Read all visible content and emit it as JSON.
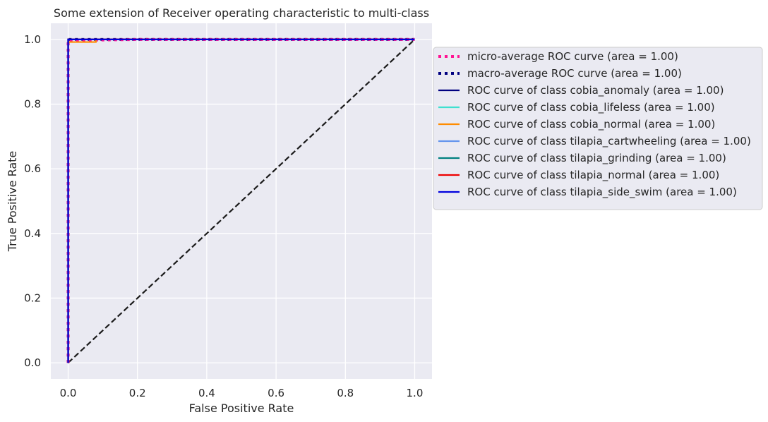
{
  "chart_data": {
    "type": "line",
    "title": "Some extension of Receiver operating characteristic to multi-class",
    "xlabel": "False Positive Rate",
    "ylabel": "True Positive Rate",
    "xlim": [
      -0.05,
      1.05
    ],
    "ylim": [
      -0.05,
      1.05
    ],
    "xticks": [
      0.0,
      0.2,
      0.4,
      0.6,
      0.8,
      1.0
    ],
    "yticks": [
      0.0,
      0.2,
      0.4,
      0.6,
      0.8,
      1.0
    ],
    "xtick_labels": [
      "0.0",
      "0.2",
      "0.4",
      "0.6",
      "0.8",
      "1.0"
    ],
    "ytick_labels": [
      "0.0",
      "0.2",
      "0.4",
      "0.6",
      "0.8",
      "1.0"
    ],
    "grid": true,
    "legend_placement": "outside right, upper",
    "background": "#eaeaf2",
    "series": [
      {
        "name": "micro-average ROC curve (area = 1.00)",
        "color": "#ff1493",
        "style": "dotted-thick",
        "x": [
          0,
          0,
          0.2,
          1
        ],
        "y": [
          0,
          0.997,
          1,
          1
        ]
      },
      {
        "name": "macro-average ROC curve (area = 1.00)",
        "color": "#000080",
        "style": "dotted-thick",
        "x": [
          0,
          0,
          0,
          1
        ],
        "y": [
          0,
          0.9,
          1,
          1
        ]
      },
      {
        "name": "ROC curve of class cobia_anomaly (area = 1.00)",
        "color": "#000080",
        "style": "solid",
        "x": [
          0,
          0,
          1
        ],
        "y": [
          0,
          1,
          1
        ]
      },
      {
        "name": "ROC curve of class cobia_lifeless (area = 1.00)",
        "color": "#40e0d0",
        "style": "solid",
        "x": [
          0,
          0,
          1
        ],
        "y": [
          0,
          1,
          1
        ]
      },
      {
        "name": "ROC curve of class cobia_normal (area = 1.00)",
        "color": "#ff8c00",
        "style": "solid",
        "x": [
          0,
          0,
          0.08,
          0.08,
          1
        ],
        "y": [
          0,
          0.992,
          0.992,
          1,
          1
        ]
      },
      {
        "name": "ROC curve of class tilapia_cartwheeling (area = 1.00)",
        "color": "#6495ed",
        "style": "solid",
        "x": [
          0,
          0,
          1
        ],
        "y": [
          0,
          1,
          1
        ]
      },
      {
        "name": "ROC curve of class tilapia_grinding (area = 1.00)",
        "color": "#008080",
        "style": "solid",
        "x": [
          0,
          0,
          1
        ],
        "y": [
          0,
          1,
          1
        ]
      },
      {
        "name": "ROC curve of class tilapia_normal (area = 1.00)",
        "color": "#ee0000",
        "style": "solid",
        "x": [
          0,
          0,
          1
        ],
        "y": [
          0,
          1,
          1
        ]
      },
      {
        "name": "ROC curve of class tilapia_side_swim (area = 1.00)",
        "color": "#0000dd",
        "style": "solid",
        "x": [
          0,
          0,
          1
        ],
        "y": [
          0,
          1,
          1
        ]
      }
    ],
    "reference_line": {
      "x": [
        0,
        1
      ],
      "y": [
        0,
        1
      ],
      "color": "#1a1a1a",
      "style": "dashed"
    }
  }
}
